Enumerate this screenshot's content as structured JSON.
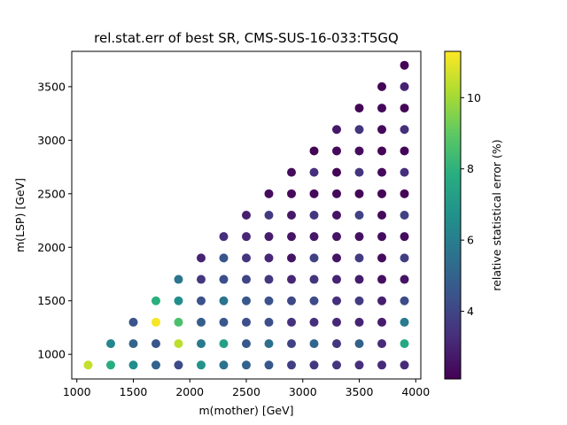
{
  "chart_data": {
    "type": "scatter",
    "title": "rel.stat.err of best SR, CMS-SUS-16-033:T5GQ",
    "xlabel": "m(mother) [GeV]",
    "ylabel": "m(LSP) [GeV]",
    "xlim": [
      955,
      4045
    ],
    "ylim": [
      770,
      3830
    ],
    "xticks": [
      1000,
      1500,
      2000,
      2500,
      3000,
      3500,
      4000
    ],
    "yticks": [
      1000,
      1500,
      2000,
      2500,
      3000,
      3500
    ],
    "grid": false,
    "colorbar": {
      "label": "relative statistical error (%)",
      "range": [
        2.1,
        11.3
      ],
      "ticks": [
        4,
        6,
        8,
        10
      ],
      "colormap": "viridis"
    },
    "points": [
      {
        "x": 1100,
        "y": 900,
        "c": 10.5
      },
      {
        "x": 1300,
        "y": 900,
        "c": 7.8
      },
      {
        "x": 1300,
        "y": 1100,
        "c": 6.3
      },
      {
        "x": 1500,
        "y": 900,
        "c": 6.5
      },
      {
        "x": 1500,
        "y": 1100,
        "c": 5.1
      },
      {
        "x": 1500,
        "y": 1300,
        "c": 4.5
      },
      {
        "x": 1700,
        "y": 900,
        "c": 5.0
      },
      {
        "x": 1700,
        "y": 1100,
        "c": 4.5
      },
      {
        "x": 1700,
        "y": 1300,
        "c": 11.2
      },
      {
        "x": 1700,
        "y": 1500,
        "c": 7.9
      },
      {
        "x": 1900,
        "y": 900,
        "c": 4.2
      },
      {
        "x": 1900,
        "y": 1100,
        "c": 10.4
      },
      {
        "x": 1900,
        "y": 1300,
        "c": 8.6
      },
      {
        "x": 1900,
        "y": 1500,
        "c": 6.6
      },
      {
        "x": 1900,
        "y": 1700,
        "c": 5.7
      },
      {
        "x": 2100,
        "y": 900,
        "c": 6.8
      },
      {
        "x": 2100,
        "y": 1100,
        "c": 5.8
      },
      {
        "x": 2100,
        "y": 1300,
        "c": 4.8
      },
      {
        "x": 2100,
        "y": 1500,
        "c": 4.4
      },
      {
        "x": 2100,
        "y": 1700,
        "c": 3.6
      },
      {
        "x": 2100,
        "y": 1900,
        "c": 3.0
      },
      {
        "x": 2300,
        "y": 900,
        "c": 5.6
      },
      {
        "x": 2300,
        "y": 1100,
        "c": 7.3
      },
      {
        "x": 2300,
        "y": 1300,
        "c": 4.6
      },
      {
        "x": 2300,
        "y": 1500,
        "c": 5.6
      },
      {
        "x": 2300,
        "y": 1700,
        "c": 4.3
      },
      {
        "x": 2300,
        "y": 1900,
        "c": 4.5
      },
      {
        "x": 2300,
        "y": 2100,
        "c": 3.3
      },
      {
        "x": 2500,
        "y": 900,
        "c": 5.0
      },
      {
        "x": 2500,
        "y": 1100,
        "c": 4.6
      },
      {
        "x": 2500,
        "y": 1300,
        "c": 4.3
      },
      {
        "x": 2500,
        "y": 1500,
        "c": 4.6
      },
      {
        "x": 2500,
        "y": 1700,
        "c": 4.0
      },
      {
        "x": 2500,
        "y": 1900,
        "c": 3.5
      },
      {
        "x": 2500,
        "y": 2100,
        "c": 3.1
      },
      {
        "x": 2500,
        "y": 2300,
        "c": 2.9
      },
      {
        "x": 2700,
        "y": 900,
        "c": 4.6
      },
      {
        "x": 2700,
        "y": 1100,
        "c": 5.4
      },
      {
        "x": 2700,
        "y": 1300,
        "c": 4.3
      },
      {
        "x": 2700,
        "y": 1500,
        "c": 4.4
      },
      {
        "x": 2700,
        "y": 1700,
        "c": 3.6
      },
      {
        "x": 2700,
        "y": 1900,
        "c": 3.1
      },
      {
        "x": 2700,
        "y": 2100,
        "c": 2.8
      },
      {
        "x": 2700,
        "y": 2300,
        "c": 3.7
      },
      {
        "x": 2700,
        "y": 2500,
        "c": 2.4
      },
      {
        "x": 2900,
        "y": 900,
        "c": 3.8
      },
      {
        "x": 2900,
        "y": 1100,
        "c": 3.9
      },
      {
        "x": 2900,
        "y": 1300,
        "c": 3.4
      },
      {
        "x": 2900,
        "y": 1500,
        "c": 4.1
      },
      {
        "x": 2900,
        "y": 1700,
        "c": 3.1
      },
      {
        "x": 2900,
        "y": 1900,
        "c": 2.6
      },
      {
        "x": 2900,
        "y": 2100,
        "c": 2.6
      },
      {
        "x": 2900,
        "y": 2300,
        "c": 2.7
      },
      {
        "x": 2900,
        "y": 2500,
        "c": 2.3
      },
      {
        "x": 2900,
        "y": 2700,
        "c": 2.4
      },
      {
        "x": 3100,
        "y": 900,
        "c": 3.6
      },
      {
        "x": 3100,
        "y": 1100,
        "c": 5.1
      },
      {
        "x": 3100,
        "y": 1300,
        "c": 3.3
      },
      {
        "x": 3100,
        "y": 1500,
        "c": 4.2
      },
      {
        "x": 3100,
        "y": 1700,
        "c": 3.5
      },
      {
        "x": 3100,
        "y": 1900,
        "c": 3.9
      },
      {
        "x": 3100,
        "y": 2100,
        "c": 2.7
      },
      {
        "x": 3100,
        "y": 2300,
        "c": 3.6
      },
      {
        "x": 3100,
        "y": 2500,
        "c": 2.3
      },
      {
        "x": 3100,
        "y": 2700,
        "c": 3.3
      },
      {
        "x": 3100,
        "y": 2900,
        "c": 2.2
      },
      {
        "x": 3300,
        "y": 900,
        "c": 3.5
      },
      {
        "x": 3300,
        "y": 1100,
        "c": 3.5
      },
      {
        "x": 3300,
        "y": 1300,
        "c": 3.1
      },
      {
        "x": 3300,
        "y": 1500,
        "c": 3.3
      },
      {
        "x": 3300,
        "y": 1700,
        "c": 3.0
      },
      {
        "x": 3300,
        "y": 1900,
        "c": 2.6
      },
      {
        "x": 3300,
        "y": 2100,
        "c": 2.6
      },
      {
        "x": 3300,
        "y": 2300,
        "c": 2.6
      },
      {
        "x": 3300,
        "y": 2500,
        "c": 2.3
      },
      {
        "x": 3300,
        "y": 2700,
        "c": 2.2
      },
      {
        "x": 3300,
        "y": 2900,
        "c": 2.3
      },
      {
        "x": 3300,
        "y": 3100,
        "c": 2.7
      },
      {
        "x": 3500,
        "y": 900,
        "c": 3.3
      },
      {
        "x": 3500,
        "y": 1100,
        "c": 4.9
      },
      {
        "x": 3500,
        "y": 1300,
        "c": 3.0
      },
      {
        "x": 3500,
        "y": 1500,
        "c": 3.7
      },
      {
        "x": 3500,
        "y": 1700,
        "c": 2.8
      },
      {
        "x": 3500,
        "y": 1900,
        "c": 3.7
      },
      {
        "x": 3500,
        "y": 2100,
        "c": 2.5
      },
      {
        "x": 3500,
        "y": 2300,
        "c": 3.9
      },
      {
        "x": 3500,
        "y": 2500,
        "c": 2.2
      },
      {
        "x": 3500,
        "y": 2700,
        "c": 3.5
      },
      {
        "x": 3500,
        "y": 2900,
        "c": 2.4
      },
      {
        "x": 3500,
        "y": 3100,
        "c": 3.5
      },
      {
        "x": 3500,
        "y": 3300,
        "c": 2.2
      },
      {
        "x": 3700,
        "y": 900,
        "c": 3.2
      },
      {
        "x": 3700,
        "y": 1100,
        "c": 3.2
      },
      {
        "x": 3700,
        "y": 1300,
        "c": 2.8
      },
      {
        "x": 3700,
        "y": 1500,
        "c": 2.9
      },
      {
        "x": 3700,
        "y": 1700,
        "c": 2.5
      },
      {
        "x": 3700,
        "y": 1900,
        "c": 2.4
      },
      {
        "x": 3700,
        "y": 2100,
        "c": 2.4
      },
      {
        "x": 3700,
        "y": 2300,
        "c": 2.3
      },
      {
        "x": 3700,
        "y": 2500,
        "c": 2.2
      },
      {
        "x": 3700,
        "y": 2700,
        "c": 2.3
      },
      {
        "x": 3700,
        "y": 2900,
        "c": 2.2
      },
      {
        "x": 3700,
        "y": 3100,
        "c": 2.3
      },
      {
        "x": 3700,
        "y": 3300,
        "c": 2.3
      },
      {
        "x": 3700,
        "y": 3500,
        "c": 2.2
      },
      {
        "x": 3900,
        "y": 900,
        "c": 3.2
      },
      {
        "x": 3900,
        "y": 1100,
        "c": 7.6
      },
      {
        "x": 3900,
        "y": 1300,
        "c": 5.9
      },
      {
        "x": 3900,
        "y": 1500,
        "c": 4.2
      },
      {
        "x": 3900,
        "y": 1700,
        "c": 2.6
      },
      {
        "x": 3900,
        "y": 1900,
        "c": 3.8
      },
      {
        "x": 3900,
        "y": 2100,
        "c": 2.4
      },
      {
        "x": 3900,
        "y": 2300,
        "c": 3.9
      },
      {
        "x": 3900,
        "y": 2500,
        "c": 2.2
      },
      {
        "x": 3900,
        "y": 2700,
        "c": 3.3
      },
      {
        "x": 3900,
        "y": 2900,
        "c": 2.2
      },
      {
        "x": 3900,
        "y": 3100,
        "c": 3.3
      },
      {
        "x": 3900,
        "y": 3300,
        "c": 2.2
      },
      {
        "x": 3900,
        "y": 3500,
        "c": 3.0
      },
      {
        "x": 3900,
        "y": 3700,
        "c": 2.2
      }
    ]
  }
}
